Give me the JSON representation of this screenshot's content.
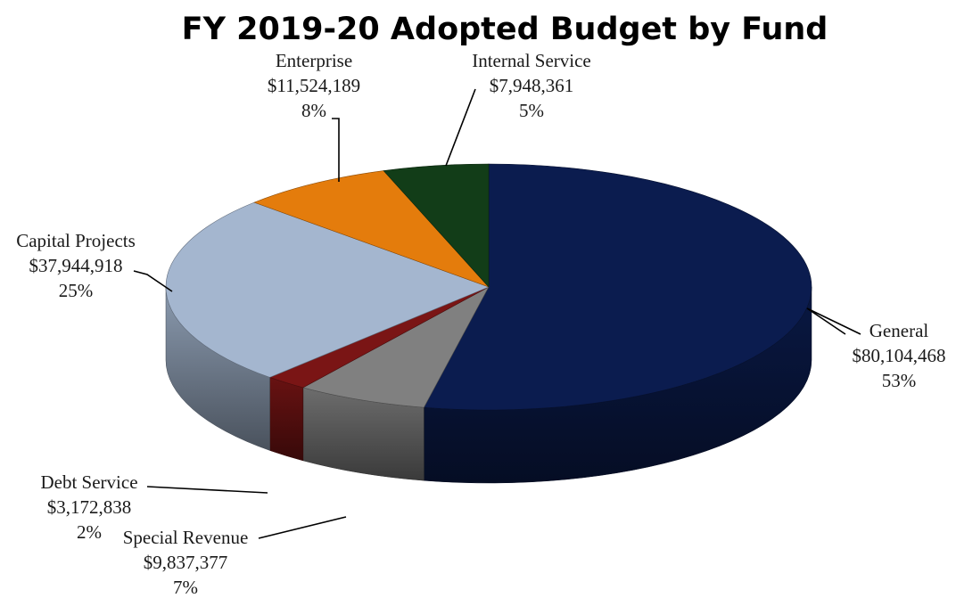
{
  "chart_data": {
    "type": "pie",
    "title": "FY 2019-20 Adopted Budget by Fund",
    "slices": [
      {
        "name": "General",
        "value": 80104468,
        "value_label": "$80,104,468",
        "percent_label": "53%",
        "color": "#0b1c4f"
      },
      {
        "name": "Special Revenue",
        "value": 9837377,
        "value_label": "$9,837,377",
        "percent_label": "7%",
        "color": "#808080"
      },
      {
        "name": "Debt Service",
        "value": 3172838,
        "value_label": "$3,172,838",
        "percent_label": "2%",
        "color": "#7a1515"
      },
      {
        "name": "Capital Projects",
        "value": 37944918,
        "value_label": "$37,944,918",
        "percent_label": "25%",
        "color": "#a4b6cf"
      },
      {
        "name": "Enterprise",
        "value": 11524189,
        "value_label": "$11,524,189",
        "percent_label": "8%",
        "color": "#e47c0c"
      },
      {
        "name": "Internal Service",
        "value": 7948361,
        "value_label": "$7,948,361",
        "percent_label": "5%",
        "color": "#123d18"
      }
    ],
    "style": "3d-pie",
    "legend": "none"
  }
}
